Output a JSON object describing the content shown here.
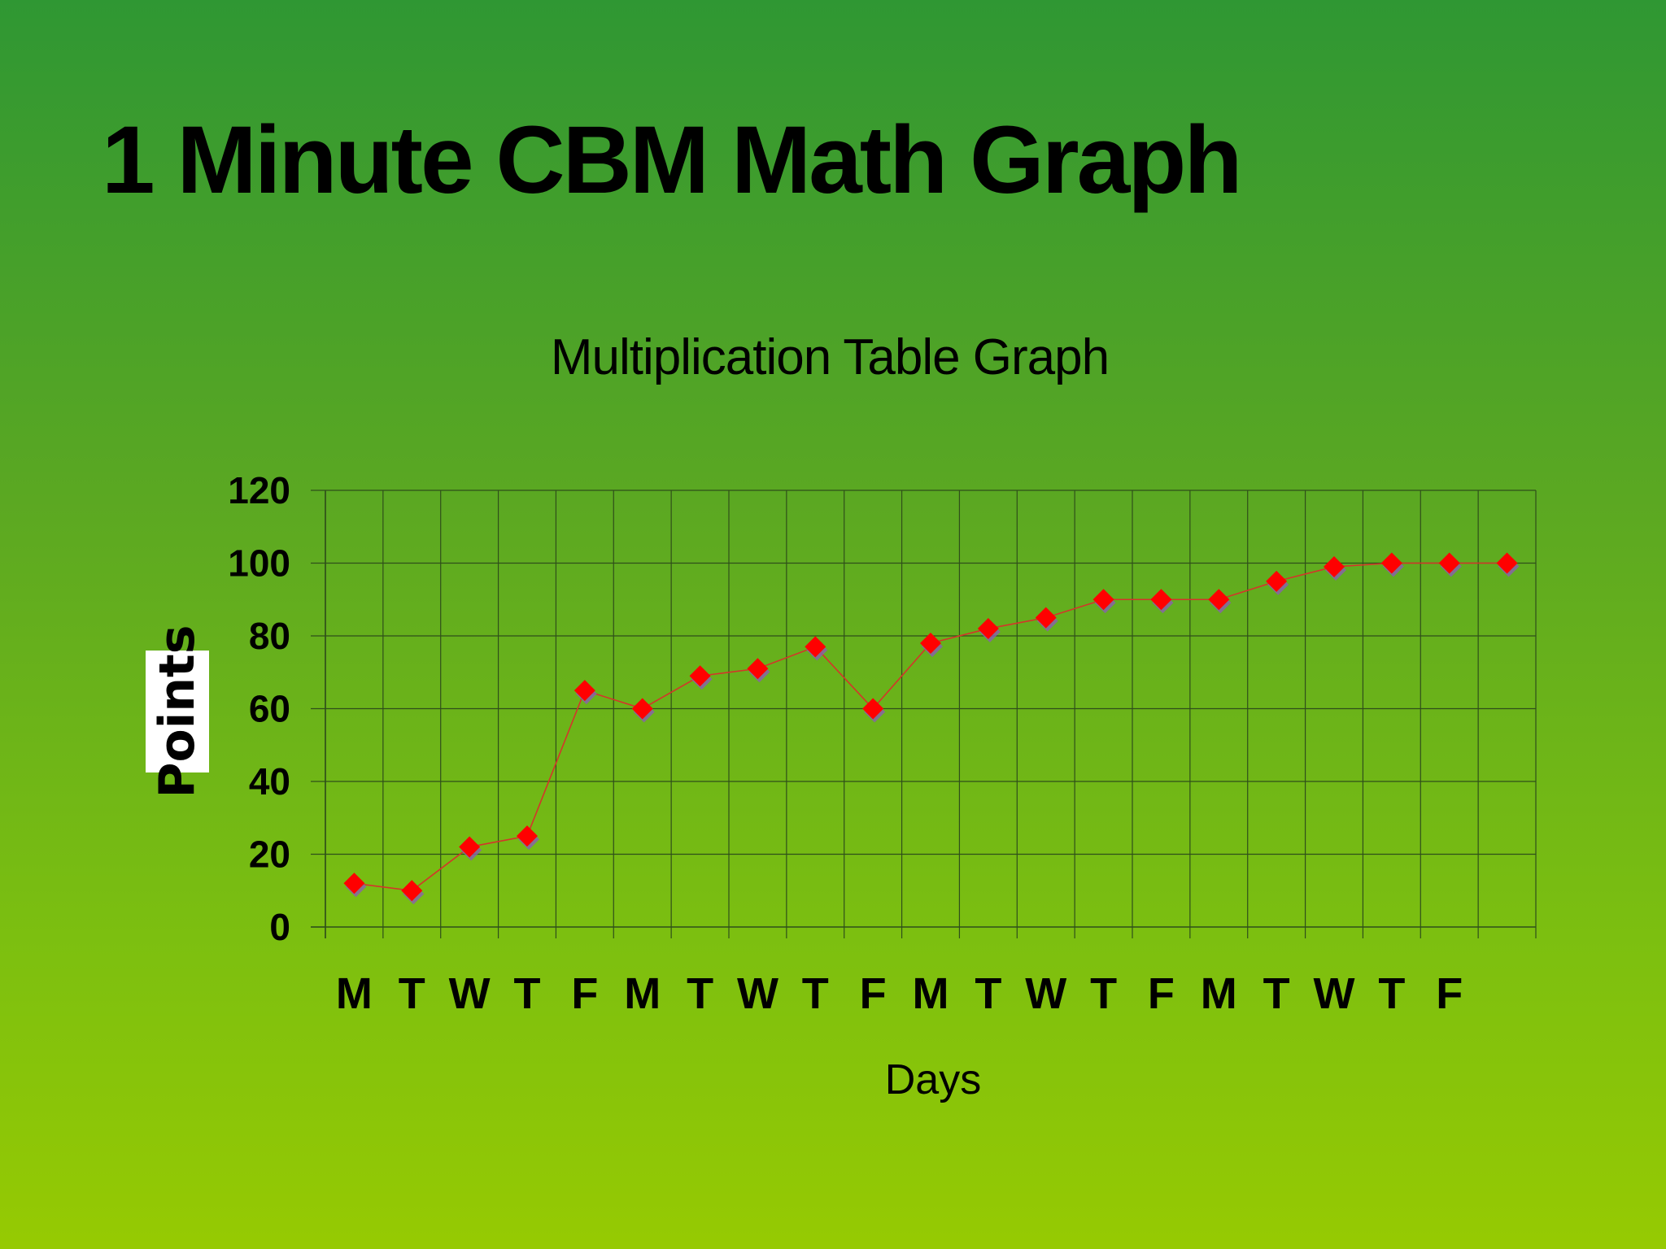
{
  "slide": {
    "title": "1 Minute CBM Math Graph"
  },
  "chart_data": {
    "type": "line",
    "title": "Multiplication Table Graph",
    "xlabel": "Days",
    "ylabel": "Points",
    "categories": [
      "M",
      "T",
      "W",
      "T",
      "F",
      "M",
      "T",
      "W",
      "T",
      "F",
      "M",
      "T",
      "W",
      "T",
      "F",
      "M",
      "T",
      "W",
      "T",
      "F",
      ""
    ],
    "series": [
      {
        "values": [
          12,
          10,
          22,
          25,
          65,
          60,
          69,
          71,
          77,
          60,
          78,
          82,
          85,
          90,
          90,
          90,
          95,
          99,
          100,
          100,
          100
        ]
      }
    ],
    "ylim": [
      0,
      120
    ],
    "yticks": [
      0,
      20,
      40,
      60,
      80,
      100,
      120
    ],
    "grid": true,
    "legend": "none",
    "colors": {
      "marker": "#ff0000",
      "marker_shadow": "#8a5fb0",
      "line": "#d4352a",
      "grid": "#2f4f1a"
    }
  }
}
